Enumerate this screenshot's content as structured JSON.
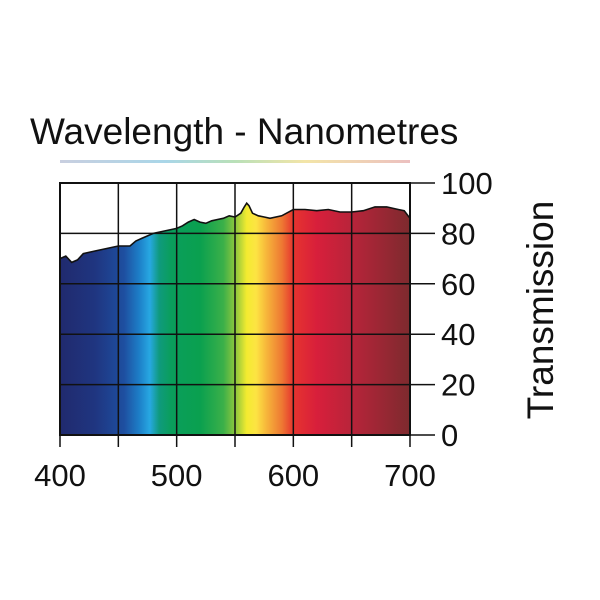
{
  "chart_data": {
    "type": "area",
    "title": "Wavelength - Nanometres",
    "xlabel": "",
    "ylabel": "Transmission",
    "xlim": [
      400,
      700
    ],
    "ylim": [
      0,
      100
    ],
    "x_ticks": [
      400,
      500,
      600,
      700
    ],
    "y_ticks": [
      0,
      20,
      40,
      60,
      80,
      100
    ],
    "grid": true,
    "series": [
      {
        "x": [
          400,
          405,
          410,
          415,
          420,
          430,
          440,
          450,
          460,
          465,
          470,
          480,
          490,
          500,
          505,
          510,
          515,
          520,
          525,
          530,
          535,
          540,
          545,
          550,
          555,
          558,
          560,
          562,
          565,
          570,
          575,
          580,
          590,
          600,
          610,
          620,
          630,
          640,
          650,
          660,
          670,
          680,
          690,
          695,
          700
        ],
        "values": [
          70,
          71,
          68.5,
          69.5,
          72,
          73,
          74,
          75,
          75,
          77,
          78,
          80,
          81,
          82,
          83,
          84.5,
          85.5,
          84.5,
          84,
          85,
          85.5,
          86,
          87,
          86.5,
          88,
          90.5,
          92,
          91,
          88,
          87,
          86.5,
          86,
          87,
          89.5,
          89.5,
          89,
          89.5,
          88.5,
          88.5,
          89,
          90.5,
          90.5,
          89.5,
          89,
          86
        ]
      }
    ],
    "spectrum_colors": [
      {
        "x": 400,
        "color": "#202a6e"
      },
      {
        "x": 430,
        "color": "#1f3580"
      },
      {
        "x": 455,
        "color": "#1e4fa0"
      },
      {
        "x": 468,
        "color": "#1d7fc8"
      },
      {
        "x": 477,
        "color": "#27a8e2"
      },
      {
        "x": 485,
        "color": "#0f9a7e"
      },
      {
        "x": 495,
        "color": "#0a9e5c"
      },
      {
        "x": 520,
        "color": "#0aa04f"
      },
      {
        "x": 540,
        "color": "#3bb049"
      },
      {
        "x": 552,
        "color": "#9ccb3b"
      },
      {
        "x": 560,
        "color": "#f3eb30"
      },
      {
        "x": 568,
        "color": "#fde443"
      },
      {
        "x": 578,
        "color": "#f6b13a"
      },
      {
        "x": 590,
        "color": "#ee7a33"
      },
      {
        "x": 600,
        "color": "#e6342f"
      },
      {
        "x": 620,
        "color": "#d81f3b"
      },
      {
        "x": 650,
        "color": "#b8243a"
      },
      {
        "x": 700,
        "color": "#7d2a2e"
      }
    ],
    "line_color": "#111111",
    "grid_color": "#111111"
  }
}
